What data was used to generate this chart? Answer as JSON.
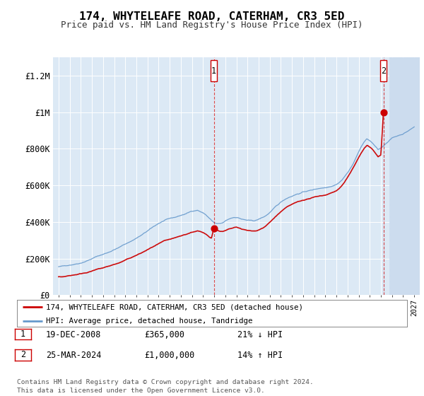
{
  "title": "174, WHYTELEAFE ROAD, CATERHAM, CR3 5ED",
  "subtitle": "Price paid vs. HM Land Registry's House Price Index (HPI)",
  "background_color": "#dce9f5",
  "ylim": [
    0,
    1300000
  ],
  "yticks": [
    0,
    200000,
    400000,
    600000,
    800000,
    1000000,
    1200000
  ],
  "ytick_labels": [
    "£0",
    "£200K",
    "£400K",
    "£600K",
    "£800K",
    "£1M",
    "£1.2M"
  ],
  "transaction1_date": 2008.97,
  "transaction1_price": 365000,
  "transaction2_date": 2024.23,
  "transaction2_price": 1000000,
  "sale1_text": "19-DEC-2008",
  "sale1_price_text": "£365,000",
  "sale1_hpi_text": "21% ↓ HPI",
  "sale2_text": "25-MAR-2024",
  "sale2_price_text": "£1,000,000",
  "sale2_hpi_text": "14% ↑ HPI",
  "legend_line1": "174, WHYTELEAFE ROAD, CATERHAM, CR3 5ED (detached house)",
  "legend_line2": "HPI: Average price, detached house, Tandridge",
  "footer": "Contains HM Land Registry data © Crown copyright and database right 2024.\nThis data is licensed under the Open Government Licence v3.0.",
  "line_red_color": "#cc0000",
  "line_blue_color": "#6699cc",
  "future_start_year": 2024.75,
  "xmin": 1994.5,
  "xmax": 2027.5,
  "hpi_waypoints_x": [
    1995.0,
    1995.5,
    1996.0,
    1996.5,
    1997.0,
    1997.5,
    1998.0,
    1998.5,
    1999.0,
    1999.5,
    2000.0,
    2000.5,
    2001.0,
    2001.5,
    2002.0,
    2002.5,
    2003.0,
    2003.5,
    2004.0,
    2004.5,
    2005.0,
    2005.5,
    2006.0,
    2006.5,
    2007.0,
    2007.25,
    2007.5,
    2007.75,
    2008.0,
    2008.25,
    2008.5,
    2008.75,
    2009.0,
    2009.25,
    2009.5,
    2009.75,
    2010.0,
    2010.25,
    2010.5,
    2010.75,
    2011.0,
    2011.25,
    2011.5,
    2011.75,
    2012.0,
    2012.25,
    2012.5,
    2012.75,
    2013.0,
    2013.25,
    2013.5,
    2013.75,
    2014.0,
    2014.25,
    2014.5,
    2014.75,
    2015.0,
    2015.25,
    2015.5,
    2015.75,
    2016.0,
    2016.25,
    2016.5,
    2016.75,
    2017.0,
    2017.25,
    2017.5,
    2017.75,
    2018.0,
    2018.25,
    2018.5,
    2018.75,
    2019.0,
    2019.25,
    2019.5,
    2019.75,
    2020.0,
    2020.25,
    2020.5,
    2020.75,
    2021.0,
    2021.25,
    2021.5,
    2021.75,
    2022.0,
    2022.25,
    2022.5,
    2022.75,
    2023.0,
    2023.25,
    2023.5,
    2023.75,
    2024.0,
    2024.25,
    2024.5,
    2024.75,
    2025.0,
    2025.5,
    2026.0,
    2026.5,
    2027.0
  ],
  "hpi_waypoints_y": [
    155000,
    158000,
    165000,
    172000,
    180000,
    192000,
    205000,
    218000,
    228000,
    240000,
    255000,
    268000,
    285000,
    300000,
    318000,
    335000,
    355000,
    375000,
    395000,
    410000,
    418000,
    425000,
    435000,
    445000,
    458000,
    462000,
    465000,
    458000,
    450000,
    440000,
    425000,
    410000,
    395000,
    390000,
    388000,
    390000,
    400000,
    408000,
    415000,
    420000,
    422000,
    418000,
    412000,
    408000,
    405000,
    402000,
    400000,
    402000,
    408000,
    415000,
    422000,
    432000,
    445000,
    458000,
    472000,
    485000,
    498000,
    510000,
    520000,
    528000,
    535000,
    542000,
    548000,
    552000,
    558000,
    562000,
    565000,
    568000,
    572000,
    576000,
    580000,
    582000,
    585000,
    590000,
    595000,
    600000,
    608000,
    618000,
    632000,
    650000,
    672000,
    695000,
    720000,
    752000,
    785000,
    815000,
    840000,
    855000,
    845000,
    830000,
    810000,
    792000,
    800000,
    815000,
    830000,
    845000,
    858000,
    870000,
    882000,
    900000,
    920000
  ],
  "red_waypoints_x": [
    1995.0,
    1995.5,
    1996.0,
    1996.5,
    1997.0,
    1997.5,
    1998.0,
    1998.5,
    1999.0,
    1999.5,
    2000.0,
    2000.5,
    2001.0,
    2001.5,
    2002.0,
    2002.5,
    2003.0,
    2003.5,
    2004.0,
    2004.5,
    2005.0,
    2005.5,
    2006.0,
    2006.5,
    2007.0,
    2007.25,
    2007.5,
    2007.75,
    2008.0,
    2008.25,
    2008.5,
    2008.75,
    2008.97,
    2009.25,
    2009.5,
    2009.75,
    2010.0,
    2010.25,
    2010.5,
    2010.75,
    2011.0,
    2011.25,
    2011.5,
    2011.75,
    2012.0,
    2012.25,
    2012.5,
    2012.75,
    2013.0,
    2013.25,
    2013.5,
    2013.75,
    2014.0,
    2014.25,
    2014.5,
    2014.75,
    2015.0,
    2015.25,
    2015.5,
    2015.75,
    2016.0,
    2016.25,
    2016.5,
    2016.75,
    2017.0,
    2017.25,
    2017.5,
    2017.75,
    2018.0,
    2018.25,
    2018.5,
    2018.75,
    2019.0,
    2019.25,
    2019.5,
    2019.75,
    2020.0,
    2020.25,
    2020.5,
    2020.75,
    2021.0,
    2021.25,
    2021.5,
    2021.75,
    2022.0,
    2022.25,
    2022.5,
    2022.75,
    2023.0,
    2023.25,
    2023.5,
    2023.75,
    2024.0,
    2024.23
  ],
  "red_waypoints_y": [
    100000,
    102000,
    108000,
    114000,
    120000,
    128000,
    137000,
    146000,
    153000,
    162000,
    172000,
    182000,
    195000,
    208000,
    222000,
    236000,
    252000,
    268000,
    283000,
    296000,
    303000,
    310000,
    320000,
    330000,
    342000,
    346000,
    350000,
    345000,
    338000,
    330000,
    320000,
    310000,
    365000,
    358000,
    350000,
    348000,
    352000,
    358000,
    362000,
    366000,
    368000,
    364000,
    358000,
    354000,
    350000,
    348000,
    346000,
    348000,
    354000,
    362000,
    370000,
    382000,
    396000,
    410000,
    426000,
    440000,
    454000,
    466000,
    476000,
    484000,
    492000,
    498000,
    504000,
    508000,
    514000,
    518000,
    522000,
    526000,
    530000,
    534000,
    538000,
    540000,
    544000,
    550000,
    556000,
    562000,
    570000,
    582000,
    598000,
    618000,
    642000,
    665000,
    692000,
    722000,
    752000,
    778000,
    802000,
    820000,
    810000,
    796000,
    776000,
    758000,
    766000,
    1000000
  ]
}
